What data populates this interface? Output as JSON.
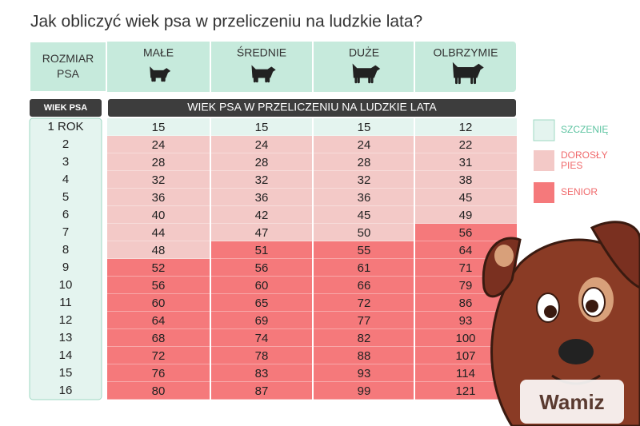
{
  "title": "Jak obliczyć wiek psa w przeliczeniu na ludzkie lata?",
  "header": {
    "size_label": "ROZMIAR PSA",
    "sizes": [
      "MAŁE",
      "ŚREDNIE",
      "DUŻE",
      "OLBRZYMIE"
    ],
    "age_label": "WIEK PSA",
    "human_label": "WIEK PSA W PRZELICZENIU NA LUDZKIE LATA"
  },
  "legend": [
    {
      "label": "SZCZENIĘ",
      "color": "#e4f4ef"
    },
    {
      "label": "DOROSŁY PIES",
      "color": "#f3c9c7"
    },
    {
      "label": "SENIOR",
      "color": "#f5797b"
    }
  ],
  "table": {
    "rows": [
      {
        "age": "1 ROK",
        "values": [
          15,
          15,
          15,
          12
        ],
        "stages": [
          0,
          0,
          0,
          0
        ]
      },
      {
        "age": "2",
        "values": [
          24,
          24,
          24,
          22
        ],
        "stages": [
          1,
          1,
          1,
          1
        ]
      },
      {
        "age": "3",
        "values": [
          28,
          28,
          28,
          31
        ],
        "stages": [
          1,
          1,
          1,
          1
        ]
      },
      {
        "age": "4",
        "values": [
          32,
          32,
          32,
          38
        ],
        "stages": [
          1,
          1,
          1,
          1
        ]
      },
      {
        "age": "5",
        "values": [
          36,
          36,
          36,
          45
        ],
        "stages": [
          1,
          1,
          1,
          1
        ]
      },
      {
        "age": "6",
        "values": [
          40,
          42,
          45,
          49
        ],
        "stages": [
          1,
          1,
          1,
          1
        ]
      },
      {
        "age": "7",
        "values": [
          44,
          47,
          50,
          56
        ],
        "stages": [
          1,
          1,
          1,
          2
        ]
      },
      {
        "age": "8",
        "values": [
          48,
          51,
          55,
          64
        ],
        "stages": [
          1,
          2,
          2,
          2
        ]
      },
      {
        "age": "9",
        "values": [
          52,
          56,
          61,
          71
        ],
        "stages": [
          2,
          2,
          2,
          2
        ]
      },
      {
        "age": "10",
        "values": [
          56,
          60,
          66,
          79
        ],
        "stages": [
          2,
          2,
          2,
          2
        ]
      },
      {
        "age": "11",
        "values": [
          60,
          65,
          72,
          86
        ],
        "stages": [
          2,
          2,
          2,
          2
        ]
      },
      {
        "age": "12",
        "values": [
          64,
          69,
          77,
          93
        ],
        "stages": [
          2,
          2,
          2,
          2
        ]
      },
      {
        "age": "13",
        "values": [
          68,
          74,
          82,
          100
        ],
        "stages": [
          2,
          2,
          2,
          2
        ]
      },
      {
        "age": "14",
        "values": [
          72,
          78,
          88,
          107
        ],
        "stages": [
          2,
          2,
          2,
          2
        ]
      },
      {
        "age": "15",
        "values": [
          76,
          83,
          93,
          114
        ],
        "stages": [
          2,
          2,
          2,
          2
        ]
      },
      {
        "age": "16",
        "values": [
          80,
          87,
          99,
          121
        ],
        "stages": [
          2,
          2,
          2,
          2
        ]
      }
    ]
  },
  "logo": "Wamiz"
}
